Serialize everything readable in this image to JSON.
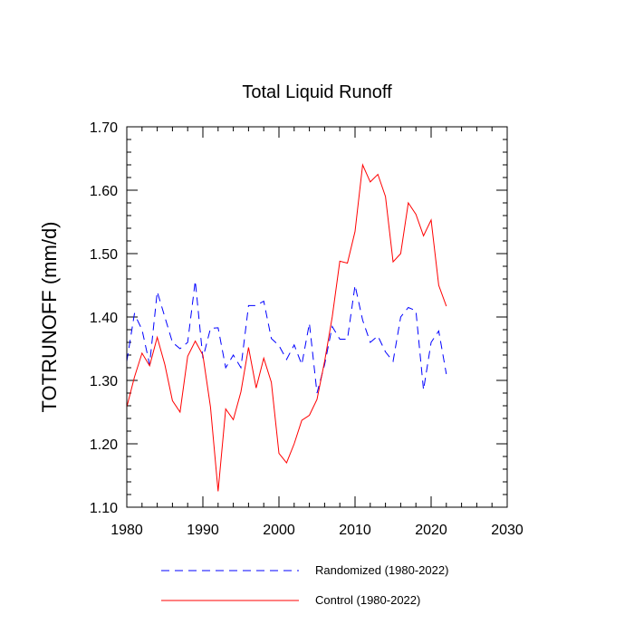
{
  "chart_data": {
    "type": "line",
    "title": "Total Liquid Runoff",
    "ylabel": "TOTRUNOFF  (mm/d)",
    "xlabel": "",
    "xlim": [
      1980,
      2030
    ],
    "ylim": [
      1.1,
      1.7
    ],
    "xticks": [
      1980,
      1990,
      2000,
      2010,
      2020,
      2030
    ],
    "xtick_labels": [
      "1980",
      "1990",
      "2000",
      "2010",
      "2020",
      "2030"
    ],
    "yticks": [
      1.1,
      1.2,
      1.3,
      1.4,
      1.5,
      1.6,
      1.7
    ],
    "ytick_labels": [
      "1.10",
      "1.20",
      "1.30",
      "1.40",
      "1.50",
      "1.60",
      "1.70"
    ],
    "legend_position": "bottom",
    "x": [
      1980,
      1981,
      1982,
      1983,
      1984,
      1985,
      1986,
      1987,
      1988,
      1989,
      1990,
      1991,
      1992,
      1993,
      1994,
      1995,
      1996,
      1997,
      1998,
      1999,
      2000,
      2001,
      2002,
      2003,
      2004,
      2005,
      2006,
      2007,
      2008,
      2009,
      2010,
      2011,
      2012,
      2013,
      2014,
      2015,
      2016,
      2017,
      2018,
      2019,
      2020,
      2021,
      2022
    ],
    "series": [
      {
        "name": "Randomized (1980-2022)",
        "color": "#0000ff",
        "style": "dashed",
        "values": [
          1.33,
          1.405,
          1.38,
          1.325,
          1.44,
          1.4,
          1.36,
          1.35,
          1.36,
          1.457,
          1.335,
          1.382,
          1.383,
          1.32,
          1.34,
          1.32,
          1.418,
          1.418,
          1.425,
          1.366,
          1.355,
          1.333,
          1.356,
          1.325,
          1.39,
          1.28,
          1.325,
          1.385,
          1.365,
          1.365,
          1.45,
          1.395,
          1.36,
          1.37,
          1.345,
          1.33,
          1.4,
          1.415,
          1.41,
          1.285,
          1.36,
          1.378,
          1.31
        ]
      },
      {
        "name": "Control (1980-2022)",
        "color": "#ff0000",
        "style": "solid",
        "values": [
          1.258,
          1.305,
          1.343,
          1.323,
          1.368,
          1.325,
          1.268,
          1.25,
          1.338,
          1.362,
          1.34,
          1.258,
          1.125,
          1.255,
          1.238,
          1.282,
          1.352,
          1.288,
          1.335,
          1.297,
          1.185,
          1.17,
          1.2,
          1.237,
          1.245,
          1.27,
          1.33,
          1.4,
          1.488,
          1.485,
          1.535,
          1.64,
          1.613,
          1.625,
          1.59,
          1.487,
          1.5,
          1.58,
          1.562,
          1.528,
          1.553,
          1.45,
          1.417
        ]
      }
    ]
  }
}
